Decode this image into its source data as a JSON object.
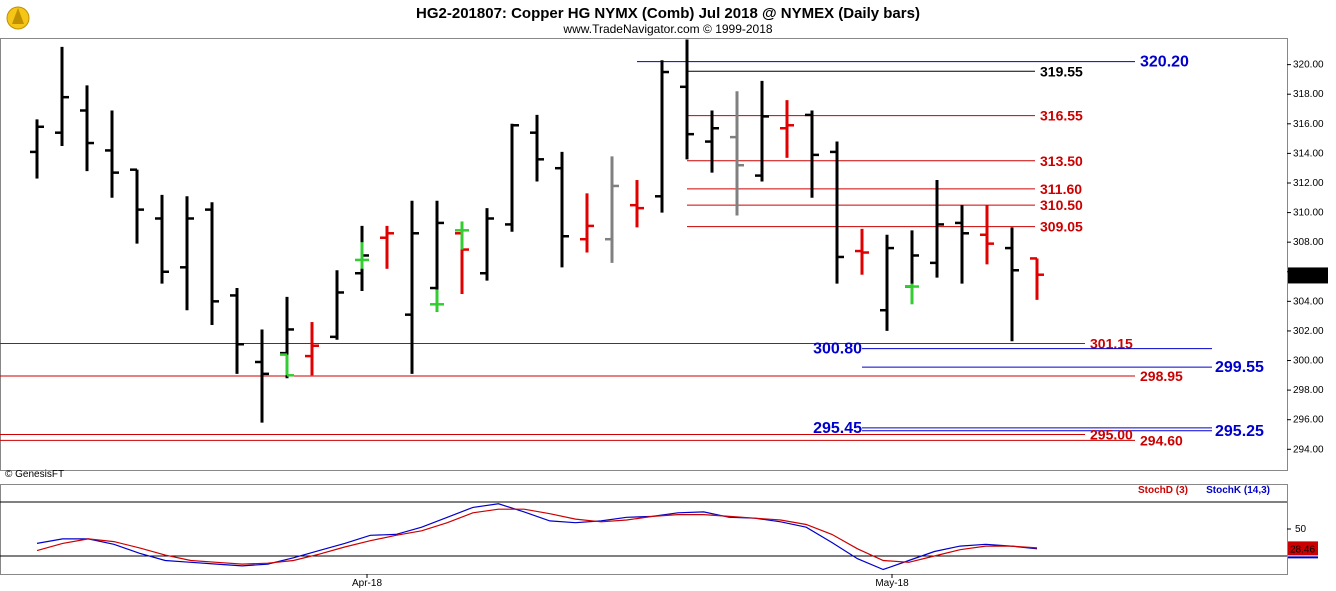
{
  "header": {
    "title": "HG2-201807:  Copper HG NYMX (Comb) Jul 2018 @ NYMEX  (Daily bars)",
    "subtitle": "www.TradeNavigator.com © 1999-2018",
    "copyright": "© GenesisFT"
  },
  "colors": {
    "up": "#000000",
    "down": "#e00000",
    "neutral": "#808080",
    "green": "#33cc33",
    "support": "#0000cc",
    "resistance": "#cc0000"
  },
  "chart_data": [
    {
      "type": "ohlc",
      "title": "HG2-201807:  Copper HG NYMX (Comb) Jul 2018 @ NYMEX  (Daily bars)",
      "ylim": [
        292.6,
        321.8
      ],
      "y_ticks": [
        "294.00",
        "296.00",
        "298.00",
        "300.00",
        "302.00",
        "304.00",
        "306.00",
        "308.00",
        "310.00",
        "312.00",
        "314.00",
        "316.00",
        "318.00",
        "320.00"
      ],
      "last_price": "305.75",
      "x_labels": [
        "Apr-18",
        "May-18"
      ],
      "bars": [
        {
          "o": 314.1,
          "h": 316.3,
          "l": 312.3,
          "c": 315.8,
          "col": "up"
        },
        {
          "o": 315.4,
          "h": 321.2,
          "l": 314.5,
          "c": 317.8,
          "col": "up"
        },
        {
          "o": 316.9,
          "h": 318.6,
          "l": 312.8,
          "c": 314.7,
          "col": "up"
        },
        {
          "o": 314.2,
          "h": 316.9,
          "l": 311.0,
          "c": 312.7,
          "col": "up"
        },
        {
          "o": 312.9,
          "h": 312.9,
          "l": 307.9,
          "c": 310.2,
          "col": "up"
        },
        {
          "o": 309.6,
          "h": 311.2,
          "l": 305.2,
          "c": 306.0,
          "col": "up"
        },
        {
          "o": 306.3,
          "h": 311.1,
          "l": 303.4,
          "c": 309.6,
          "col": "up"
        },
        {
          "o": 310.2,
          "h": 310.7,
          "l": 302.4,
          "c": 304.0,
          "col": "up"
        },
        {
          "o": 304.4,
          "h": 304.9,
          "l": 299.1,
          "c": 301.1,
          "col": "up"
        },
        {
          "o": 299.9,
          "h": 302.1,
          "l": 295.8,
          "c": 299.1,
          "col": "up"
        },
        {
          "o": 300.5,
          "h": 304.3,
          "l": 298.8,
          "c": 302.1,
          "col": "up"
        },
        {
          "o": 301.6,
          "h": 306.1,
          "l": 301.4,
          "c": 304.6,
          "col": "up"
        },
        {
          "o": 305.9,
          "h": 309.1,
          "l": 304.7,
          "c": 307.1,
          "col": "up"
        },
        {
          "o": 303.1,
          "h": 310.8,
          "l": 299.1,
          "c": 308.6,
          "col": "up"
        },
        {
          "o": 304.9,
          "h": 310.8,
          "l": 303.3,
          "c": 309.3,
          "col": "up"
        },
        {
          "o": 305.9,
          "h": 310.3,
          "l": 305.4,
          "c": 309.6,
          "col": "up"
        },
        {
          "o": 309.2,
          "h": 316.0,
          "l": 308.7,
          "c": 315.9,
          "col": "up"
        },
        {
          "o": 315.4,
          "h": 316.6,
          "l": 312.1,
          "c": 313.6,
          "col": "up"
        },
        {
          "o": 313.0,
          "h": 314.1,
          "l": 306.3,
          "c": 308.4,
          "col": "up"
        },
        {
          "o": 311.1,
          "h": 320.3,
          "l": 310.0,
          "c": 319.5,
          "col": "up"
        },
        {
          "o": 318.5,
          "h": 321.7,
          "l": 313.6,
          "c": 315.3,
          "col": "up"
        },
        {
          "o": 314.8,
          "h": 316.9,
          "l": 312.7,
          "c": 315.7,
          "col": "up"
        },
        {
          "o": 312.5,
          "h": 318.9,
          "l": 312.1,
          "c": 316.5,
          "col": "up"
        },
        {
          "o": 316.6,
          "h": 316.9,
          "l": 311.0,
          "c": 313.9,
          "col": "up"
        },
        {
          "o": 314.1,
          "h": 314.8,
          "l": 305.2,
          "c": 307.0,
          "col": "up"
        },
        {
          "o": 303.4,
          "h": 308.5,
          "l": 302.0,
          "c": 307.6,
          "col": "up"
        },
        {
          "o": 305.0,
          "h": 308.8,
          "l": 303.9,
          "c": 307.1,
          "col": "up"
        },
        {
          "o": 306.6,
          "h": 312.2,
          "l": 305.6,
          "c": 309.2,
          "col": "up"
        },
        {
          "o": 309.3,
          "h": 310.5,
          "l": 305.2,
          "c": 308.6,
          "col": "up"
        },
        {
          "o": 307.6,
          "h": 309.0,
          "l": 301.3,
          "c": 306.1,
          "col": "up"
        },
        {
          "o": 300.3,
          "h": 302.6,
          "l": 299.0,
          "c": 301.0,
          "col": "down"
        },
        {
          "o": 308.3,
          "h": 309.1,
          "l": 306.2,
          "c": 308.6,
          "col": "down"
        },
        {
          "o": 308.6,
          "h": 309.0,
          "l": 304.5,
          "c": 307.5,
          "col": "down"
        },
        {
          "o": 308.2,
          "h": 311.3,
          "l": 307.3,
          "c": 309.1,
          "col": "down"
        },
        {
          "o": 310.5,
          "h": 312.2,
          "l": 309.0,
          "c": 310.3,
          "col": "down"
        },
        {
          "o": 315.7,
          "h": 317.6,
          "l": 313.7,
          "c": 315.9,
          "col": "down"
        },
        {
          "o": 307.4,
          "h": 308.9,
          "l": 305.8,
          "c": 307.3,
          "col": "down"
        },
        {
          "o": 308.5,
          "h": 310.5,
          "l": 306.5,
          "c": 307.9,
          "col": "down"
        },
        {
          "o": 306.9,
          "h": 306.9,
          "l": 304.1,
          "c": 305.8,
          "col": "down"
        },
        {
          "o": 308.2,
          "h": 313.8,
          "l": 306.6,
          "c": 311.8,
          "col": "neutral"
        },
        {
          "o": 315.1,
          "h": 318.2,
          "l": 309.8,
          "c": 313.2,
          "col": "neutral"
        },
        {
          "o": 300.4,
          "h": 300.4,
          "l": 299.0,
          "c": 299.0,
          "col": "green"
        },
        {
          "o": 306.8,
          "h": 308.0,
          "l": 306.2,
          "c": 306.8,
          "col": "green"
        },
        {
          "o": 303.8,
          "h": 304.8,
          "l": 303.3,
          "c": 303.8,
          "col": "green"
        },
        {
          "o": 308.8,
          "h": 309.4,
          "l": 307.5,
          "c": 308.8,
          "col": "green"
        },
        {
          "o": 305.0,
          "h": 305.2,
          "l": 303.8,
          "c": 305.0,
          "col": "green"
        }
      ],
      "levels": [
        {
          "label": "320.20",
          "value": 320.2,
          "color": "support",
          "big": true
        },
        {
          "label": "319.55",
          "value": 319.55,
          "color": "black"
        },
        {
          "label": "316.55",
          "value": 316.55,
          "color": "resistance"
        },
        {
          "label": "313.50",
          "value": 313.5,
          "color": "resistance"
        },
        {
          "label": "311.60",
          "value": 311.6,
          "color": "resistance"
        },
        {
          "label": "310.50",
          "value": 310.5,
          "color": "resistance"
        },
        {
          "label": "309.05",
          "value": 309.05,
          "color": "resistance"
        },
        {
          "label": "301.15",
          "value": 301.15,
          "color": "resistance"
        },
        {
          "label": "300.80",
          "value": 300.8,
          "color": "support",
          "big": true
        },
        {
          "label": "299.55",
          "value": 299.55,
          "color": "support",
          "big": true
        },
        {
          "label": "298.95",
          "value": 298.95,
          "color": "resistance"
        },
        {
          "label": "295.45",
          "value": 295.45,
          "color": "support",
          "big": true
        },
        {
          "label": "295.25",
          "value": 295.25,
          "color": "support",
          "big": true
        },
        {
          "label": "295.00",
          "value": 295.0,
          "color": "resistance"
        },
        {
          "label": "294.60",
          "value": 294.6,
          "color": "resistance"
        }
      ]
    },
    {
      "type": "line",
      "title": "",
      "legend": [
        "StochD (3)",
        "StochK (14,3)"
      ],
      "ylim": [
        0,
        100
      ],
      "y_ticks": [
        "50"
      ],
      "last_value": "28.46",
      "series": [
        {
          "name": "StochK (14,3)",
          "color": "#0000cc",
          "values": [
            34,
            39,
            39,
            33,
            23,
            15,
            13,
            11,
            9,
            11,
            18,
            26,
            34,
            43,
            44,
            52,
            63,
            74,
            78,
            69,
            59,
            57,
            59,
            63,
            64,
            68,
            69,
            63,
            62,
            58,
            52,
            35,
            17,
            5,
            15,
            25,
            31,
            33,
            31,
            28
          ]
        },
        {
          "name": "StochD (3)",
          "color": "#cc0000",
          "values": [
            26,
            34,
            39,
            36,
            29,
            21,
            15,
            13,
            11,
            12,
            15,
            22,
            30,
            37,
            43,
            48,
            57,
            68,
            72,
            72,
            67,
            61,
            58,
            60,
            64,
            66,
            66,
            64,
            62,
            60,
            55,
            44,
            28,
            15,
            13,
            20,
            27,
            31,
            31,
            29
          ]
        }
      ]
    }
  ]
}
